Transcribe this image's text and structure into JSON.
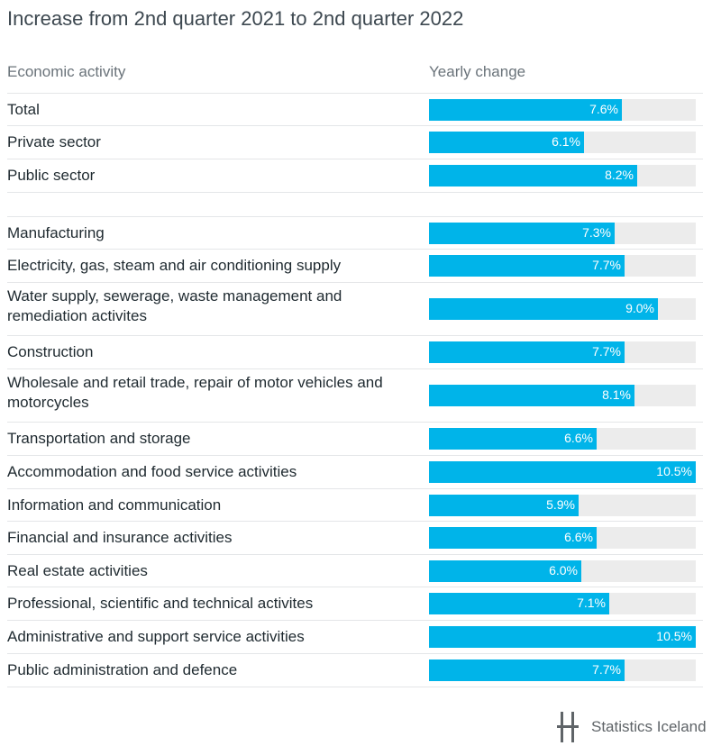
{
  "chart_data": {
    "type": "bar",
    "orientation": "horizontal",
    "title": "Increase from 2nd quarter 2021 to 2nd quarter 2022",
    "category_header": "Economic activity",
    "value_header": "Yearly change",
    "unit": "%",
    "xlim": [
      0,
      10.5
    ],
    "bar_color": "#00b4e9",
    "track_color": "#ececec",
    "rows": [
      {
        "label": "Total",
        "value": 7.6,
        "display": "7.6%"
      },
      {
        "label": "Private sector",
        "value": 6.1,
        "display": "6.1%"
      },
      {
        "label": "Public sector",
        "value": 8.2,
        "display": "8.2%"
      },
      {
        "label": "Manufacturing",
        "value": 7.3,
        "display": "7.3%"
      },
      {
        "label": "Electricity, gas, steam and air conditioning supply",
        "value": 7.7,
        "display": "7.7%"
      },
      {
        "label": "Water supply, sewerage, waste management and remediation activites",
        "value": 9.0,
        "display": "9.0%"
      },
      {
        "label": "Construction",
        "value": 7.7,
        "display": "7.7%"
      },
      {
        "label": "Wholesale and retail trade, repair of motor vehicles and motorcycles",
        "value": 8.1,
        "display": "8.1%"
      },
      {
        "label": "Transportation and storage",
        "value": 6.6,
        "display": "6.6%"
      },
      {
        "label": "Accommodation and food service activities",
        "value": 10.5,
        "display": "10.5%"
      },
      {
        "label": "Information and communication",
        "value": 5.9,
        "display": "5.9%"
      },
      {
        "label": "Financial and insurance activities",
        "value": 6.6,
        "display": "6.6%"
      },
      {
        "label": "Real estate activities",
        "value": 6.0,
        "display": "6.0%"
      },
      {
        "label": "Professional, scientific and technical activites",
        "value": 7.1,
        "display": "7.1%"
      },
      {
        "label": "Administrative and support service activities",
        "value": 10.5,
        "display": "10.5%"
      },
      {
        "label": "Public administration and defence",
        "value": 7.7,
        "display": "7.7%"
      }
    ]
  },
  "branding": {
    "logo_text": "Statistics Iceland",
    "logo_color": "#5f6468"
  }
}
